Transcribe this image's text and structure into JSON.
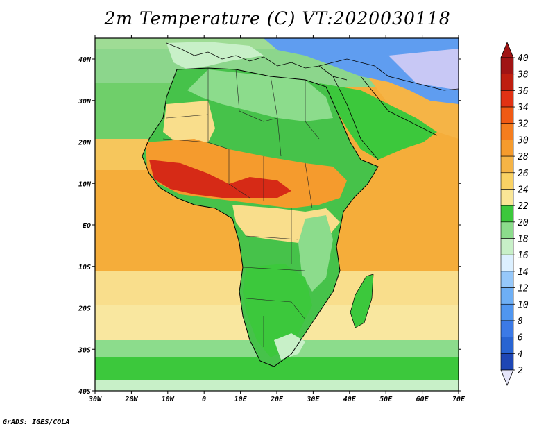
{
  "title": "2m Temperature (C) VT:2020030118",
  "footer": "GrADS: IGES/COLA",
  "map": {
    "x_ticks": [
      "30W",
      "20W",
      "10W",
      "0",
      "10E",
      "20E",
      "30E",
      "40E",
      "50E",
      "60E",
      "70E"
    ],
    "y_ticks": [
      "40N",
      "30N",
      "20N",
      "10N",
      "EQ",
      "10S",
      "20S",
      "30S",
      "40S"
    ],
    "colors": {
      "ocean_warm": "#f5ad3a",
      "ocean_mild": "#f9de8c",
      "land_green": "#46c24a",
      "hot_red": "#d62a16",
      "cold_blue": "#5f9df0"
    }
  },
  "colorbar": {
    "labels": [
      "2",
      "4",
      "6",
      "8",
      "10",
      "12",
      "14",
      "16",
      "18",
      "20",
      "22",
      "24",
      "26",
      "28",
      "30",
      "32",
      "34",
      "36",
      "38",
      "40"
    ],
    "colors": [
      "#1a1a7a",
      "#1e46b4",
      "#2864d2",
      "#3c7ae6",
      "#5096f0",
      "#6eaff5",
      "#96c8fa",
      "#dcf0ff",
      "#c8f0c8",
      "#8cdc8c",
      "#3cc83c",
      "#fae696",
      "#fad264",
      "#f5b446",
      "#f59b2d",
      "#f57d1e",
      "#f05a14",
      "#e13214",
      "#be1e0f",
      "#a01414"
    ],
    "under_color": "#e6e6fa",
    "over_color": "#a01414"
  }
}
